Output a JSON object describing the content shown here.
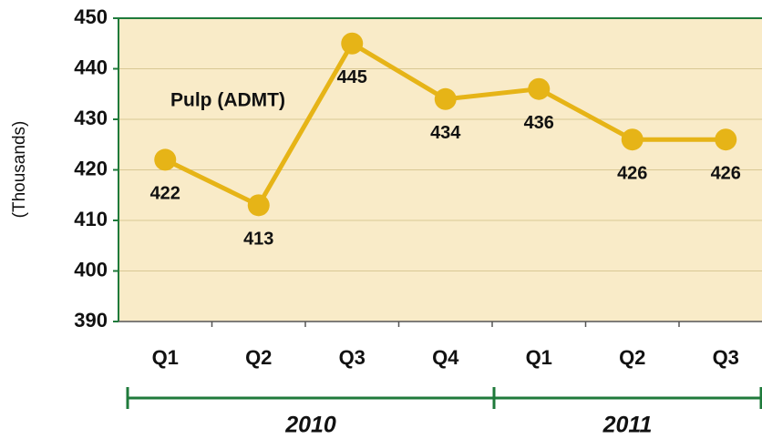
{
  "chart_data": {
    "type": "line",
    "annotation": "Pulp (ADMT)",
    "y_label": "(Thousands)",
    "groups": [
      {
        "name": "2010",
        "categories": [
          "Q1",
          "Q2",
          "Q3",
          "Q4"
        ]
      },
      {
        "name": "2011",
        "categories": [
          "Q1",
          "Q2",
          "Q3"
        ]
      }
    ],
    "series": [
      {
        "name": "Pulp (ADMT)",
        "color": "#e6b417",
        "values": [
          422,
          413,
          445,
          434,
          436,
          426,
          426
        ]
      }
    ],
    "ylim": [
      390,
      450
    ],
    "yticks": [
      390,
      400,
      410,
      420,
      430,
      440,
      450
    ],
    "grid": true,
    "plot_color": "#f9ebc8",
    "axis_color": "#1f7a3b"
  }
}
